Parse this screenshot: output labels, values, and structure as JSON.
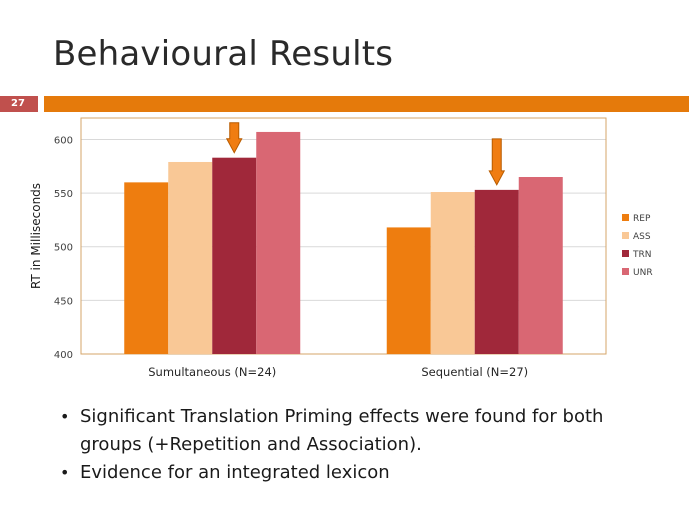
{
  "slide": {
    "title": "Behavioural Results",
    "number": "27",
    "accent_color": "#e57a0b",
    "number_box_color": "#c0504d"
  },
  "bullets": [
    "Significant Translation Priming effects were found for both groups (+Repetition and Association).",
    "Evidence for an integrated lexicon"
  ],
  "chart_data": {
    "type": "bar",
    "categories": [
      "Sumultaneous (N=24)",
      "Sequential (N=27)"
    ],
    "series": [
      {
        "name": "REP",
        "color": "#ee7d0f",
        "values": [
          560,
          518
        ]
      },
      {
        "name": "ASS",
        "color": "#f9c896",
        "values": [
          579,
          551
        ]
      },
      {
        "name": "TRN",
        "color": "#a0283a",
        "values": [
          583,
          553
        ]
      },
      {
        "name": "UNR",
        "color": "#d96773",
        "values": [
          607,
          565
        ]
      }
    ],
    "ylabel": "RT in Milliseconds",
    "ylim": [
      400,
      620
    ],
    "yticks": [
      400,
      450,
      500,
      550,
      600
    ],
    "grid": true,
    "legend": "right",
    "arrow_markers": [
      {
        "category_index": 0,
        "series": "TRN"
      },
      {
        "category_index": 1,
        "series": "TRN"
      }
    ],
    "arrow_color": "#f07d12"
  }
}
